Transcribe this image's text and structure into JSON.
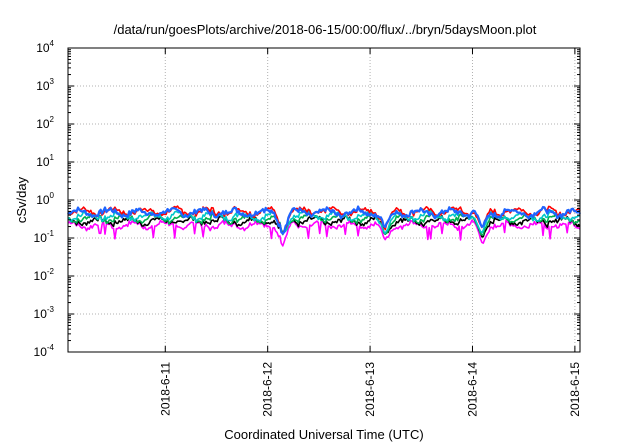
{
  "chart_data": {
    "type": "line",
    "title": "/data/run/goesPlots/archive/2018-06-15/00:00/flux/../bryn/5daysMoon.plot",
    "xlabel": "Coordinated Universal Time (UTC)",
    "ylabel": "cSv/day",
    "y_scale": "log",
    "ylim_exp": [
      -4,
      4
    ],
    "y_ticks": [
      {
        "base": "10",
        "exp": "4"
      },
      {
        "base": "10",
        "exp": "3"
      },
      {
        "base": "10",
        "exp": "2"
      },
      {
        "base": "10",
        "exp": "1"
      },
      {
        "base": "10",
        "exp": "0"
      },
      {
        "base": "10",
        "exp": "-1"
      },
      {
        "base": "10",
        "exp": "-2"
      },
      {
        "base": "10",
        "exp": "-3"
      },
      {
        "base": "10",
        "exp": "-4"
      }
    ],
    "xlim_days": [
      10.05,
      15.05
    ],
    "x_ticks": [
      {
        "label": "2018-6-11",
        "day": 11
      },
      {
        "label": "2018-6-12",
        "day": 12
      },
      {
        "label": "2018-6-13",
        "day": 13
      },
      {
        "label": "2018-6-14",
        "day": 14
      },
      {
        "label": "2018-6-15",
        "day": 15
      }
    ],
    "grid": true,
    "dips": [
      {
        "day": 12.15,
        "min_log": -1.2
      },
      {
        "day": 13.15,
        "min_log": -1.1
      },
      {
        "day": 14.1,
        "min_log": -1.15
      }
    ],
    "series": [
      {
        "color": "#ff00ff",
        "base": 0.22
      },
      {
        "color": "#000000",
        "base": 0.28
      },
      {
        "color": "#00b050",
        "base": 0.33
      },
      {
        "color": "#00c8c8",
        "base": 0.38
      },
      {
        "color": "#ff0000",
        "base": 0.5
      },
      {
        "color": "#1e64ff",
        "base": 0.47
      }
    ]
  }
}
